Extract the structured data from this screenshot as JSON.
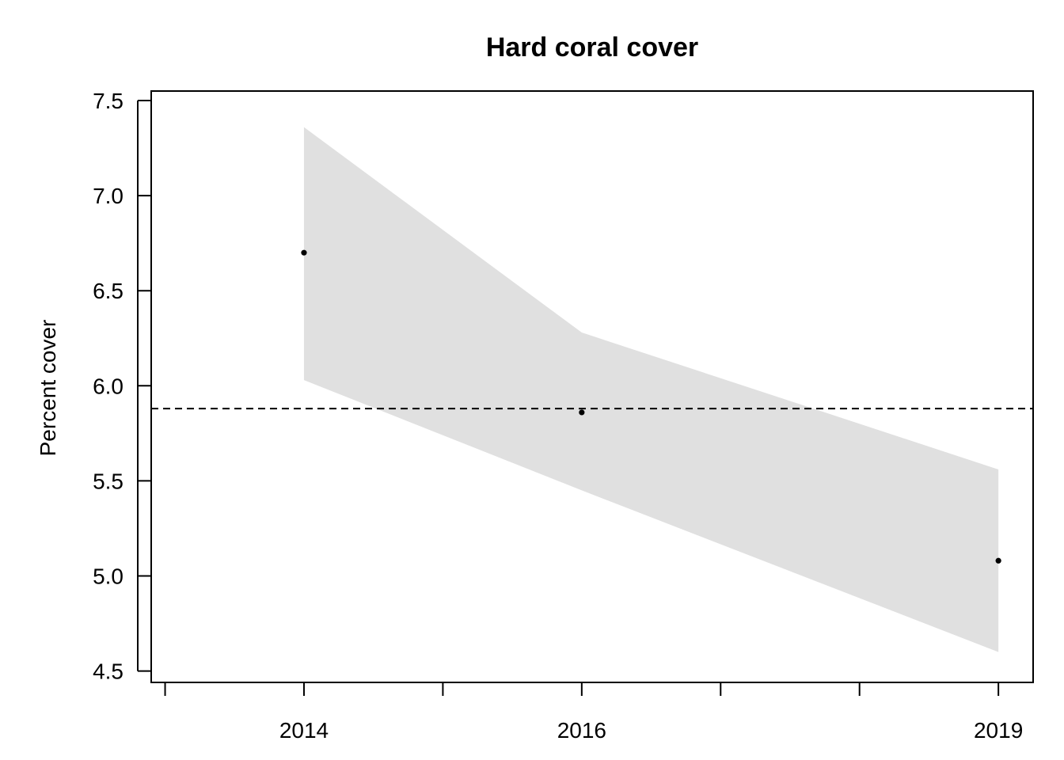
{
  "chart_data": {
    "type": "line",
    "title": "Hard coral cover",
    "xlabel": "",
    "ylabel": "Percent cover",
    "x_ticks": [
      2014,
      2016,
      2019
    ],
    "x_minor_ticks": [
      2013,
      2014,
      2015,
      2016,
      2017,
      2018,
      2019
    ],
    "y_ticks": [
      "4.5",
      "5.0",
      "5.5",
      "6.0",
      "6.5",
      "7.0",
      "7.5"
    ],
    "xlim": [
      2012.9,
      2019.25
    ],
    "ylim": [
      4.44,
      7.55
    ],
    "grid": false,
    "legend": "none",
    "points": [
      {
        "x": 2014,
        "y": 6.7
      },
      {
        "x": 2016,
        "y": 5.86
      },
      {
        "x": 2019,
        "y": 5.08
      }
    ],
    "band": [
      {
        "x": 2014,
        "lower": 6.03,
        "upper": 7.36
      },
      {
        "x": 2016,
        "lower": 5.45,
        "upper": 6.28
      },
      {
        "x": 2019,
        "lower": 4.6,
        "upper": 5.56
      }
    ],
    "reference_line": {
      "y": 5.88,
      "style": "dashed"
    },
    "colors": {
      "band": "#e0e0e0",
      "points": "#000000",
      "axes": "#000000"
    }
  }
}
